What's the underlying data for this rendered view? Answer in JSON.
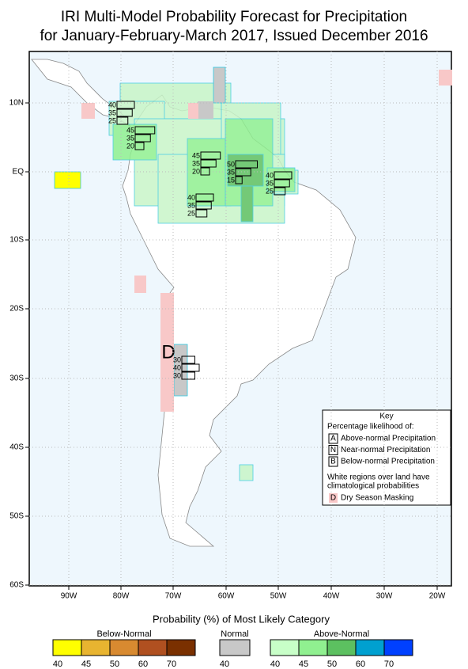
{
  "title": [
    "IRI Multi-Model Probability Forecast for Precipitation",
    "for January-February-March 2017, Issued December 2016"
  ],
  "lat_labels": [
    "10N",
    "EQ",
    "10S",
    "20S",
    "30S",
    "40S",
    "50S",
    "60S"
  ],
  "lon_labels": [
    "90W",
    "80W",
    "70W",
    "60W",
    "50W",
    "40W",
    "30W",
    "20W"
  ],
  "dry_mask_label": "D",
  "forecasts": [
    [
      40,
      35,
      25
    ],
    [
      45,
      35,
      20
    ],
    [
      45,
      35,
      20
    ],
    [
      50,
      35,
      15
    ],
    [
      40,
      35,
      25
    ],
    [
      40,
      35,
      25
    ],
    [
      30,
      40,
      30
    ]
  ],
  "key": {
    "title": "Key",
    "subtitle": "Percentage likelihood of:",
    "items": [
      {
        "letter": "A",
        "text": "Above-normal Precipitation"
      },
      {
        "letter": "N",
        "text": "Near-normal Precipitation"
      },
      {
        "letter": "B",
        "text": "Below-normal Precipitation"
      }
    ],
    "note": [
      "White regions over land have",
      "climatological probabilities"
    ],
    "mask": {
      "letter": "D",
      "text": "Dry Season Masking"
    }
  },
  "legend": {
    "title": "Probability (%) of Most Likely Category",
    "groups": [
      {
        "name": "Below-Normal",
        "colors": [
          "#ffff00",
          "#e8b430",
          "#d88a30",
          "#b05020",
          "#7a3000"
        ],
        "ticks": [
          40,
          45,
          50,
          60,
          70
        ]
      },
      {
        "name": "Normal",
        "colors": [
          "#c8c8c8"
        ],
        "ticks": [
          40
        ]
      },
      {
        "name": "Above-Normal",
        "colors": [
          "#c8ffc8",
          "#90f090",
          "#5cc060",
          "#00a0d0",
          "#0040ff"
        ],
        "ticks": [
          40,
          45,
          50,
          60,
          70
        ]
      }
    ]
  }
}
